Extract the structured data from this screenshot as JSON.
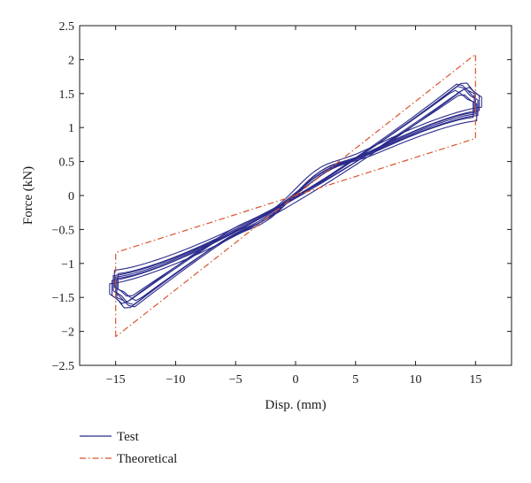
{
  "chart_data": {
    "type": "line",
    "title": "",
    "xlabel": "Disp. (mm)",
    "ylabel": "Force (kN)",
    "xlim": [
      -18,
      18
    ],
    "ylim": [
      -2.5,
      2.5
    ],
    "xticks": [
      -15,
      -10,
      -5,
      0,
      5,
      10,
      15
    ],
    "yticks": [
      -2.5,
      -2,
      -1.5,
      -1,
      -0.5,
      0,
      0.5,
      1,
      1.5,
      2,
      2.5
    ],
    "grid": false,
    "legend_position": "bottom-left",
    "series": [
      {
        "name": "Test",
        "color": "#2b2b8c",
        "style": "solid",
        "loops": [
          {
            "amp_x": 15.0,
            "peak_y": 1.62,
            "env_y": 1.42,
            "x_peak": 13.6,
            "knee_y": 0.28,
            "knee_x": 2.5,
            "tail_y": 1.2
          },
          {
            "amp_x": 15.3,
            "peak_y": 1.68,
            "env_y": 1.47,
            "x_peak": 14.0,
            "knee_y": 0.32,
            "knee_x": 2.2,
            "tail_y": 1.25
          },
          {
            "amp_x": 14.8,
            "peak_y": 1.55,
            "env_y": 1.38,
            "x_peak": 13.2,
            "knee_y": 0.24,
            "knee_x": 2.8,
            "tail_y": 1.15
          },
          {
            "amp_x": 15.5,
            "peak_y": 1.6,
            "env_y": 1.45,
            "x_peak": 14.3,
            "knee_y": 0.3,
            "knee_x": 2.0,
            "tail_y": 1.3
          },
          {
            "amp_x": 15.1,
            "peak_y": 1.5,
            "env_y": 1.35,
            "x_peak": 13.8,
            "knee_y": 0.26,
            "knee_x": 3.0,
            "tail_y": 1.1
          },
          {
            "amp_x": 14.9,
            "peak_y": 1.65,
            "env_y": 1.5,
            "x_peak": 13.5,
            "knee_y": 0.35,
            "knee_x": 2.4,
            "tail_y": 1.22
          },
          {
            "amp_x": 15.2,
            "peak_y": 1.58,
            "env_y": 1.4,
            "x_peak": 14.1,
            "knee_y": 0.22,
            "knee_x": 2.6,
            "tail_y": 1.18
          }
        ]
      },
      {
        "name": "Theoretical",
        "color": "#d9532b",
        "style": "dash-dot",
        "points": [
          [
            -15,
            -2.08
          ],
          [
            -15,
            -0.84
          ],
          [
            0,
            0
          ],
          [
            15,
            0.84
          ],
          [
            15,
            2.08
          ],
          [
            0,
            0
          ],
          [
            -15,
            -2.08
          ]
        ]
      }
    ]
  }
}
